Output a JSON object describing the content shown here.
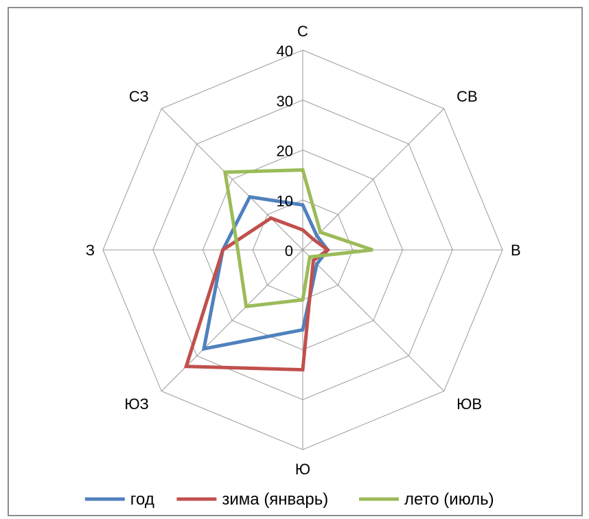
{
  "chart_data": {
    "type": "radar",
    "categories": [
      "С",
      "СВ",
      "В",
      "ЮВ",
      "Ю",
      "ЮЗ",
      "З",
      "СЗ"
    ],
    "r_ticks": [
      "0",
      "10",
      "20",
      "30",
      "40"
    ],
    "rlim": [
      0,
      40
    ],
    "grid": true,
    "legend_position": "bottom",
    "series": [
      {
        "name": "год",
        "color": "#4f81bd",
        "values": [
          9,
          4,
          5,
          4,
          16,
          28,
          16,
          15
        ]
      },
      {
        "name": "зима (январь)",
        "color": "#c0504d",
        "values": [
          4,
          3,
          5,
          3,
          24,
          33,
          16,
          9
        ]
      },
      {
        "name": "лето (июль)",
        "color": "#9bbb59",
        "values": [
          16,
          5,
          14,
          2,
          10,
          16,
          13,
          22
        ]
      }
    ]
  }
}
